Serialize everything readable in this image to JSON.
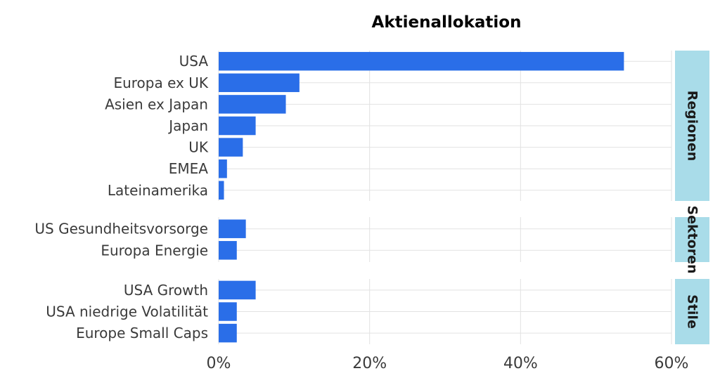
{
  "chart_data": {
    "type": "bar",
    "orientation": "horizontal",
    "title": "Aktienallokation",
    "xlabel": "",
    "ylabel": "",
    "xlim": [
      0,
      60
    ],
    "x_ticks": [
      0,
      20,
      40,
      60
    ],
    "x_tick_labels": [
      "0%",
      "20%",
      "40%",
      "60%"
    ],
    "grid": true,
    "legend": "none",
    "bar_color": "#2a6ee8",
    "facet_color": "#a9dce9",
    "facets": [
      {
        "label": "Regionen",
        "categories": [
          "USA",
          "Europa ex UK",
          "Asien ex Japan",
          "Japan",
          "UK",
          "EMEA",
          "Lateinamerika"
        ],
        "values": [
          53.7,
          10.7,
          8.9,
          4.9,
          3.2,
          1.1,
          0.7
        ]
      },
      {
        "label": "Sektoren",
        "categories": [
          "US Gesundheitsvorsorge",
          "Europa Energie"
        ],
        "values": [
          3.6,
          2.4
        ]
      },
      {
        "label": "Stile",
        "categories": [
          "USA Growth",
          "USA niedrige Volatilität",
          "Europe Small Caps"
        ],
        "values": [
          4.9,
          2.4,
          2.4
        ]
      }
    ]
  }
}
